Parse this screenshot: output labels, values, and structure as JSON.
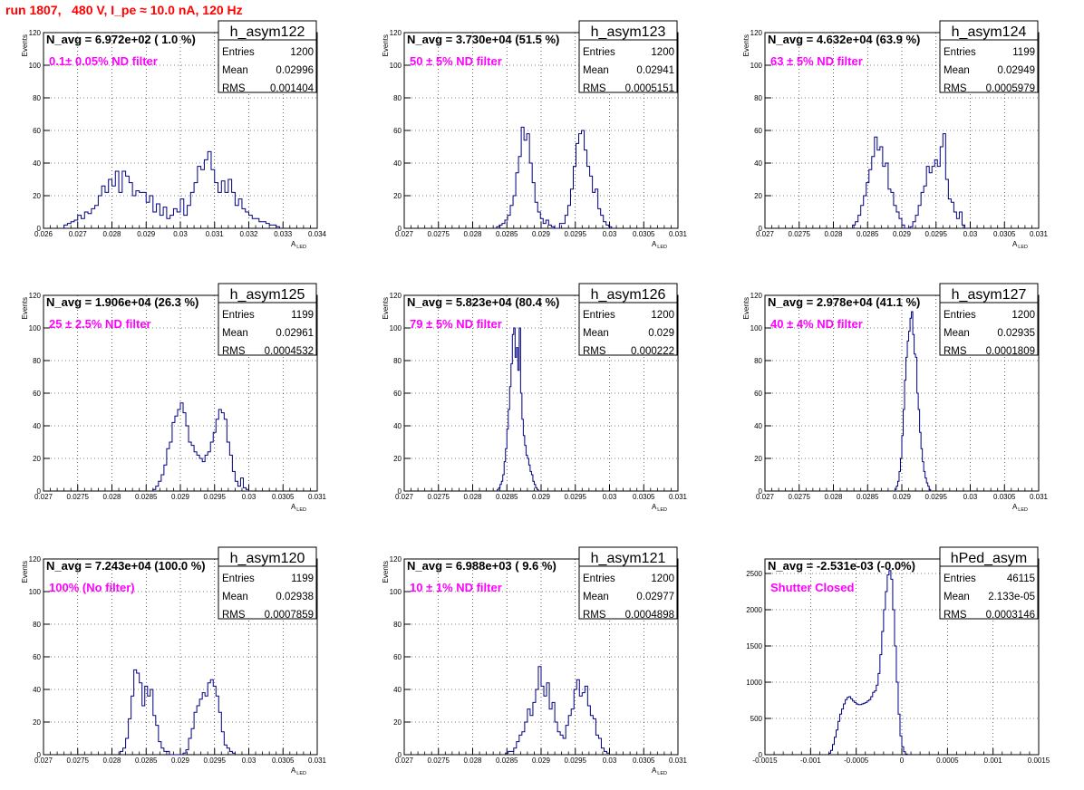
{
  "page_title": "run 1807,   480 V, I_pe ≈ 10.0 nA, 120 Hz",
  "colors": {
    "hist": "#000080",
    "title": "#ff0000",
    "annotation": "#ff00ff",
    "frame": "#000000"
  },
  "chart_data": [
    {
      "type": "histogram",
      "name": "h_asym122",
      "stats": {
        "entries": "1200",
        "mean": "0.02996",
        "rms": "0.001404"
      },
      "n_avg": "N_avg = 6.972e+02 ( 1.0 %)",
      "annotation": "0.1± 0.05% ND filter",
      "xlabel": "A",
      "xlabel_sub": "LED",
      "ylabel": "Events",
      "xlim": [
        0.026,
        0.034
      ],
      "ylim": [
        0,
        120
      ],
      "grid": true,
      "xticks": [
        "0.026",
        "0.027",
        "0.028",
        "0.029",
        "0.03",
        "0.031",
        "0.032",
        "0.033",
        "0.034"
      ],
      "yticks": [
        "0",
        "20",
        "40",
        "60",
        "80",
        "100",
        "120"
      ],
      "bin_start": 0.0266,
      "bin_width": 0.0001,
      "counts": [
        2,
        3,
        4,
        5,
        8,
        6,
        10,
        9,
        12,
        14,
        20,
        26,
        22,
        30,
        26,
        35,
        22,
        35,
        32,
        28,
        20,
        23,
        22,
        22,
        16,
        20,
        10,
        15,
        8,
        13,
        6,
        8,
        12,
        10,
        18,
        8,
        14,
        22,
        28,
        38,
        36,
        42,
        47,
        36,
        28,
        22,
        29,
        22,
        30,
        22,
        14,
        18,
        12,
        10,
        8,
        6,
        6,
        4,
        4,
        3,
        2,
        2,
        1
      ]
    },
    {
      "type": "histogram",
      "name": "h_asym123",
      "stats": {
        "entries": "1200",
        "mean": "0.02941",
        "rms": "0.0005151"
      },
      "n_avg": "N_avg = 3.730e+04 (51.5 %)",
      "annotation": "50 ± 5% ND filter",
      "xlabel": "A",
      "xlabel_sub": "LED",
      "ylabel": "Events",
      "xlim": [
        0.027,
        0.031
      ],
      "ylim": [
        0,
        120
      ],
      "grid": true,
      "xticks": [
        "0.027",
        "0.0275",
        "0.028",
        "0.0285",
        "0.029",
        "0.0295",
        "0.03",
        "0.0305",
        "0.031"
      ],
      "yticks": [
        "0",
        "20",
        "40",
        "60",
        "80",
        "100",
        "120"
      ],
      "bin_start": 0.02835,
      "bin_width": 4e-05,
      "counts": [
        1,
        2,
        3,
        5,
        8,
        14,
        20,
        34,
        44,
        62,
        54,
        58,
        40,
        28,
        16,
        10,
        6,
        3,
        5,
        2,
        1,
        0,
        0,
        3,
        3,
        8,
        14,
        24,
        38,
        52,
        58,
        60,
        48,
        38,
        32,
        22,
        24,
        12,
        8,
        4,
        2,
        1
      ]
    },
    {
      "type": "histogram",
      "name": "h_asym124",
      "stats": {
        "entries": "1199",
        "mean": "0.02949",
        "rms": "0.0005979"
      },
      "n_avg": "N_avg = 4.632e+04 (63.9 %)",
      "annotation": "63 ± 5% ND filter",
      "xlabel": "A",
      "xlabel_sub": "LED",
      "ylabel": "Events",
      "xlim": [
        0.027,
        0.031
      ],
      "ylim": [
        0,
        120
      ],
      "grid": true,
      "xticks": [
        "0.027",
        "0.0275",
        "0.028",
        "0.0285",
        "0.029",
        "0.0295",
        "0.03",
        "0.0305",
        "0.031"
      ],
      "yticks": [
        "0",
        "20",
        "40",
        "60",
        "80",
        "100",
        "120"
      ],
      "bin_start": 0.02828,
      "bin_width": 4e-05,
      "counts": [
        2,
        4,
        8,
        14,
        20,
        28,
        36,
        44,
        56,
        48,
        50,
        38,
        40,
        24,
        22,
        14,
        10,
        6,
        2,
        0,
        0,
        1,
        4,
        8,
        14,
        22,
        26,
        38,
        34,
        38,
        42,
        38,
        50,
        58,
        30,
        18,
        16,
        10,
        6,
        10,
        2
      ]
    },
    {
      "type": "histogram",
      "name": "h_asym125",
      "stats": {
        "entries": "1199",
        "mean": "0.02961",
        "rms": "0.0004532"
      },
      "n_avg": "N_avg = 1.906e+04 (26.3 %)",
      "annotation": "25 ± 2.5% ND filter",
      "xlabel": "A",
      "xlabel_sub": "LED",
      "ylabel": "Events",
      "xlim": [
        0.027,
        0.031
      ],
      "ylim": [
        0,
        120
      ],
      "grid": true,
      "xticks": [
        "0.027",
        "0.0275",
        "0.028",
        "0.0285",
        "0.029",
        "0.0295",
        "0.03",
        "0.0305",
        "0.031"
      ],
      "yticks": [
        "0",
        "20",
        "40",
        "60",
        "80",
        "100",
        "120"
      ],
      "bin_start": 0.0286,
      "bin_width": 4e-05,
      "counts": [
        1,
        3,
        6,
        10,
        16,
        26,
        30,
        42,
        46,
        50,
        54,
        48,
        40,
        30,
        28,
        24,
        22,
        20,
        18,
        22,
        24,
        30,
        36,
        44,
        50,
        48,
        44,
        30,
        22,
        12,
        6,
        3,
        8,
        2,
        1
      ]
    },
    {
      "type": "histogram",
      "name": "h_asym126",
      "stats": {
        "entries": "1200",
        "mean": "0.029",
        "rms": "0.000222"
      },
      "n_avg": "N_avg = 5.823e+04 (80.4 %)",
      "annotation": "79 ± 5% ND filter",
      "xlabel": "A",
      "xlabel_sub": "LED",
      "ylabel": "Events",
      "xlim": [
        0.027,
        0.031
      ],
      "ylim": [
        0,
        120
      ],
      "grid": true,
      "xticks": [
        "0.027",
        "0.0275",
        "0.028",
        "0.0285",
        "0.029",
        "0.0295",
        "0.03",
        "0.0305",
        "0.031"
      ],
      "yticks": [
        "0",
        "20",
        "40",
        "60",
        "80",
        "100",
        "120"
      ],
      "bin_start": 0.02836,
      "bin_width": 2e-05,
      "counts": [
        1,
        2,
        4,
        6,
        10,
        18,
        26,
        38,
        50,
        64,
        78,
        96,
        100,
        82,
        88,
        74,
        100,
        60,
        44,
        34,
        28,
        22,
        20,
        16,
        12,
        10,
        6,
        4,
        2,
        1
      ]
    },
    {
      "type": "histogram",
      "name": "h_asym127",
      "stats": {
        "entries": "1200",
        "mean": "0.02935",
        "rms": "0.0001809"
      },
      "n_avg": "N_avg = 2.978e+04 (41.1 %)",
      "annotation": "40 ± 4% ND filter",
      "xlabel": "A",
      "xlabel_sub": "LED",
      "ylabel": "Events",
      "xlim": [
        0.027,
        0.031
      ],
      "ylim": [
        0,
        120
      ],
      "grid": true,
      "xticks": [
        "0.027",
        "0.0275",
        "0.028",
        "0.0285",
        "0.029",
        "0.0295",
        "0.03",
        "0.0305",
        "0.031"
      ],
      "yticks": [
        "0",
        "20",
        "40",
        "60",
        "80",
        "100",
        "120"
      ],
      "bin_start": 0.0289,
      "bin_width": 2e-05,
      "counts": [
        1,
        3,
        6,
        12,
        20,
        34,
        50,
        68,
        82,
        92,
        98,
        106,
        110,
        96,
        84,
        82,
        60,
        50,
        36,
        26,
        18,
        12,
        8,
        5,
        3,
        1
      ]
    },
    {
      "type": "histogram",
      "name": "h_asym120",
      "stats": {
        "entries": "1199",
        "mean": "0.02938",
        "rms": "0.0007859"
      },
      "n_avg": "N_avg = 7.243e+04 (100.0 %)",
      "annotation": "100% (No filter)",
      "xlabel": "A",
      "xlabel_sub": "LED",
      "ylabel": "Events",
      "xlim": [
        0.027,
        0.031
      ],
      "ylim": [
        0,
        120
      ],
      "grid": true,
      "xticks": [
        "0.027",
        "0.0275",
        "0.028",
        "0.0285",
        "0.029",
        "0.0295",
        "0.03",
        "0.0305",
        "0.031"
      ],
      "yticks": [
        "0",
        "20",
        "40",
        "60",
        "80",
        "100",
        "120"
      ],
      "bin_start": 0.02812,
      "bin_width": 4e-05,
      "counts": [
        2,
        4,
        10,
        22,
        36,
        52,
        50,
        44,
        30,
        42,
        36,
        40,
        24,
        18,
        8,
        4,
        2,
        2,
        0,
        0,
        0,
        0,
        0,
        1,
        3,
        10,
        16,
        26,
        30,
        34,
        38,
        36,
        44,
        46,
        42,
        36,
        26,
        14,
        6,
        4,
        2,
        1
      ]
    },
    {
      "type": "histogram",
      "name": "h_asym121",
      "stats": {
        "entries": "1200",
        "mean": "0.02977",
        "rms": "0.0004898"
      },
      "n_avg": "N_avg = 6.988e+03 ( 9.6 %)",
      "annotation": "10 ± 1% ND filter",
      "xlabel": "A",
      "xlabel_sub": "LED",
      "ylabel": "Events",
      "xlim": [
        0.027,
        0.031
      ],
      "ylim": [
        0,
        120
      ],
      "grid": true,
      "xticks": [
        "0.027",
        "0.0275",
        "0.028",
        "0.0285",
        "0.029",
        "0.0295",
        "0.03",
        "0.0305",
        "0.031"
      ],
      "yticks": [
        "0",
        "20",
        "40",
        "60",
        "80",
        "100",
        "120"
      ],
      "bin_start": 0.02848,
      "bin_width": 4e-05,
      "counts": [
        1,
        2,
        2,
        4,
        8,
        12,
        14,
        20,
        28,
        24,
        32,
        40,
        54,
        42,
        36,
        44,
        28,
        32,
        20,
        14,
        12,
        10,
        18,
        24,
        28,
        40,
        46,
        36,
        38,
        42,
        30,
        24,
        22,
        12,
        10,
        4,
        2,
        1
      ]
    },
    {
      "type": "histogram",
      "name": "hPed_asym",
      "stats": {
        "entries": "46115",
        "mean": "2.133e-05",
        "rms": "0.0003146"
      },
      "n_avg": "N_avg = -2.531e-03 (-0.0%)",
      "annotation": "Shutter Closed",
      "xlabel": "",
      "xlabel_sub": "",
      "ylabel": "",
      "xlim": [
        -0.0015,
        0.0015
      ],
      "ylim": [
        0,
        2700
      ],
      "grid": true,
      "xticks": [
        "-0.0015",
        "-0.001",
        "-0.0005",
        "0",
        "0.0005",
        "0.001",
        "0.0015"
      ],
      "yticks": [
        "0",
        "500",
        "1000",
        "1500",
        "2000",
        "2500"
      ],
      "bin_start": -0.0008,
      "bin_width": 2e-05,
      "counts": [
        20,
        60,
        140,
        240,
        340,
        460,
        560,
        630,
        700,
        760,
        790,
        800,
        770,
        740,
        720,
        700,
        690,
        690,
        700,
        710,
        720,
        740,
        760,
        800,
        860,
        880,
        960,
        1120,
        1380,
        1700,
        2000,
        2250,
        2480,
        2540,
        2420,
        2000,
        1500,
        1000,
        560,
        260,
        110,
        40,
        10
      ]
    }
  ]
}
